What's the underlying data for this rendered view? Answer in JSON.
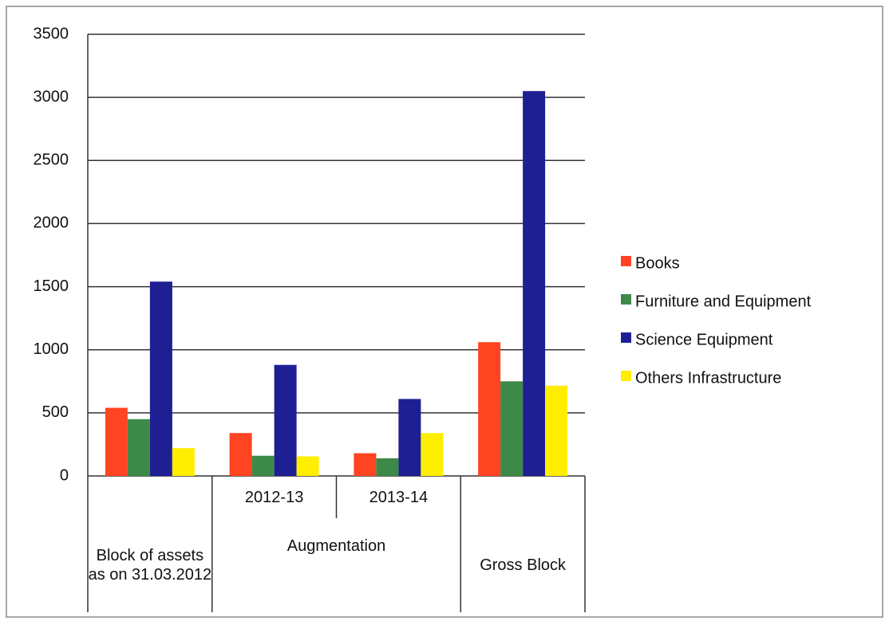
{
  "chart_data": {
    "type": "bar",
    "categories": [
      "Block of assets as on 31.03.2012",
      "2012-13",
      "2013-14",
      "Gross Block"
    ],
    "category_groups": [
      null,
      "Augmentation",
      "Augmentation",
      null
    ],
    "series": [
      {
        "name": "Books",
        "color": "#ff4422",
        "values": [
          540,
          340,
          180,
          1060
        ]
      },
      {
        "name": "Furniture and Equipment",
        "color": "#3d8a48",
        "values": [
          450,
          160,
          140,
          750
        ]
      },
      {
        "name": "Science Equipment",
        "color": "#1f1f94",
        "values": [
          1540,
          880,
          610,
          3050
        ]
      },
      {
        "name": "Others Infrastructure",
        "color": "#ffee00",
        "values": [
          220,
          155,
          340,
          715
        ]
      }
    ],
    "ylim": [
      0,
      3500
    ],
    "yticks": [
      0,
      500,
      1000,
      1500,
      2000,
      2500,
      3000,
      3500
    ],
    "grid": true,
    "legend": "right"
  }
}
